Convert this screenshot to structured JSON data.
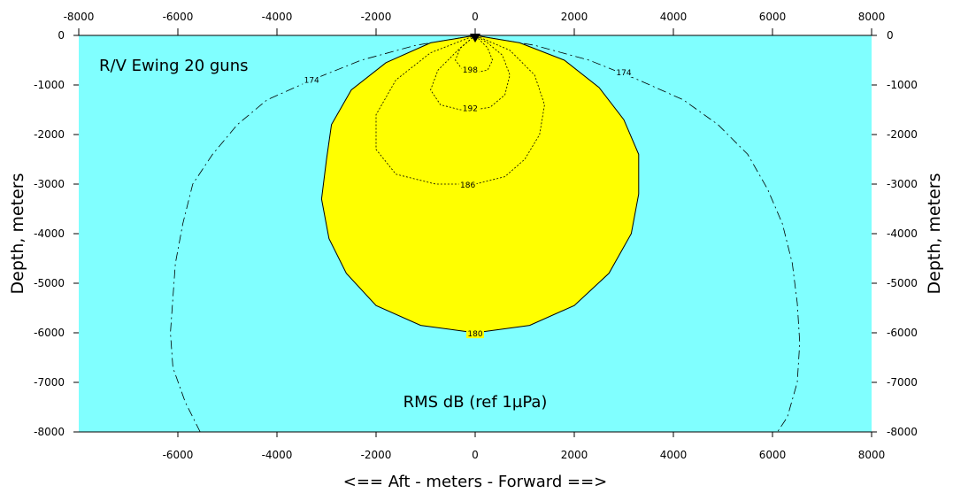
{
  "chart_data": {
    "type": "contour",
    "title": "R/V Ewing 20 guns",
    "annotation": "RMS dB (ref 1µPa)",
    "xlabel": "<==   Aft   - meters - Forward ==>",
    "ylabel_left": "Depth, meters",
    "ylabel_right": "Depth, meters",
    "xlim": [
      -8000,
      8000
    ],
    "ylim": [
      -8000,
      0
    ],
    "x_ticks_top": [
      "-8000",
      "-6000",
      "-4000",
      "-2000",
      "0",
      "2000",
      "4000",
      "6000",
      "8000"
    ],
    "x_ticks_bottom": [
      "-6000",
      "-4000",
      "-2000",
      "0",
      "2000",
      "4000",
      "6000",
      "8000"
    ],
    "y_ticks": [
      "0",
      "-1000",
      "-2000",
      "-3000",
      "-4000",
      "-5000",
      "-6000",
      "-7000",
      "-8000"
    ],
    "colors": {
      "background": "#80ffff",
      "filled_region": "#ffff00"
    },
    "filled_level": 180,
    "source_position": {
      "x": 0,
      "y": 0
    },
    "contours": [
      {
        "level": "174",
        "label_at": [
          [
            -3300,
            -900
          ],
          [
            3000,
            -750
          ]
        ],
        "points": [
          [
            -5550,
            -8000
          ],
          [
            -5850,
            -7400
          ],
          [
            -6100,
            -6700
          ],
          [
            -6150,
            -6000
          ],
          [
            -6100,
            -5300
          ],
          [
            -6050,
            -4600
          ],
          [
            -5900,
            -3800
          ],
          [
            -5700,
            -3000
          ],
          [
            -5300,
            -2400
          ],
          [
            -4800,
            -1800
          ],
          [
            -4200,
            -1300
          ],
          [
            -3300,
            -900
          ],
          [
            -2300,
            -500
          ],
          [
            -1200,
            -200
          ],
          [
            0,
            0
          ],
          [
            1200,
            -200
          ],
          [
            2300,
            -500
          ],
          [
            3300,
            -900
          ],
          [
            4200,
            -1300
          ],
          [
            4900,
            -1800
          ],
          [
            5500,
            -2400
          ],
          [
            5900,
            -3100
          ],
          [
            6200,
            -3800
          ],
          [
            6400,
            -4600
          ],
          [
            6500,
            -5400
          ],
          [
            6550,
            -6200
          ],
          [
            6500,
            -7000
          ],
          [
            6300,
            -7700
          ],
          [
            6100,
            -8000
          ]
        ]
      },
      {
        "level": "180",
        "label_at": [
          [
            0,
            -6020
          ]
        ],
        "points": [
          [
            0,
            0
          ],
          [
            -900,
            -150
          ],
          [
            -1800,
            -550
          ],
          [
            -2500,
            -1100
          ],
          [
            -2900,
            -1800
          ],
          [
            -3000,
            -2500
          ],
          [
            -3100,
            -3300
          ],
          [
            -2950,
            -4100
          ],
          [
            -2600,
            -4800
          ],
          [
            -2000,
            -5450
          ],
          [
            -1100,
            -5850
          ],
          [
            0,
            -6000
          ],
          [
            1100,
            -5850
          ],
          [
            2000,
            -5450
          ],
          [
            2700,
            -4800
          ],
          [
            3150,
            -4000
          ],
          [
            3300,
            -3200
          ],
          [
            3300,
            -2400
          ],
          [
            3000,
            -1700
          ],
          [
            2500,
            -1050
          ],
          [
            1800,
            -500
          ],
          [
            900,
            -150
          ],
          [
            0,
            0
          ]
        ]
      },
      {
        "level": "186",
        "label_at": [
          [
            -150,
            -3020
          ]
        ],
        "points": [
          [
            0,
            0
          ],
          [
            -900,
            -350
          ],
          [
            -1600,
            -900
          ],
          [
            -2000,
            -1600
          ],
          [
            -2000,
            -2300
          ],
          [
            -1600,
            -2800
          ],
          [
            -800,
            -3000
          ],
          [
            0,
            -3000
          ],
          [
            600,
            -2850
          ],
          [
            1000,
            -2500
          ],
          [
            1300,
            -2000
          ],
          [
            1400,
            -1400
          ],
          [
            1200,
            -800
          ],
          [
            700,
            -300
          ],
          [
            0,
            0
          ]
        ]
      },
      {
        "level": "192",
        "label_at": [
          [
            -100,
            -1470
          ]
        ],
        "points": [
          [
            0,
            0
          ],
          [
            -350,
            -300
          ],
          [
            -750,
            -700
          ],
          [
            -900,
            -1100
          ],
          [
            -700,
            -1400
          ],
          [
            -300,
            -1500
          ],
          [
            0,
            -1500
          ],
          [
            300,
            -1450
          ],
          [
            600,
            -1200
          ],
          [
            700,
            -800
          ],
          [
            550,
            -400
          ],
          [
            250,
            -150
          ],
          [
            0,
            0
          ]
        ]
      },
      {
        "level": "198",
        "label_at": [
          [
            -100,
            -700
          ]
        ],
        "points": [
          [
            0,
            0
          ],
          [
            -300,
            -250
          ],
          [
            -400,
            -500
          ],
          [
            -250,
            -700
          ],
          [
            0,
            -750
          ],
          [
            250,
            -700
          ],
          [
            350,
            -500
          ],
          [
            250,
            -250
          ],
          [
            0,
            0
          ]
        ]
      }
    ]
  }
}
